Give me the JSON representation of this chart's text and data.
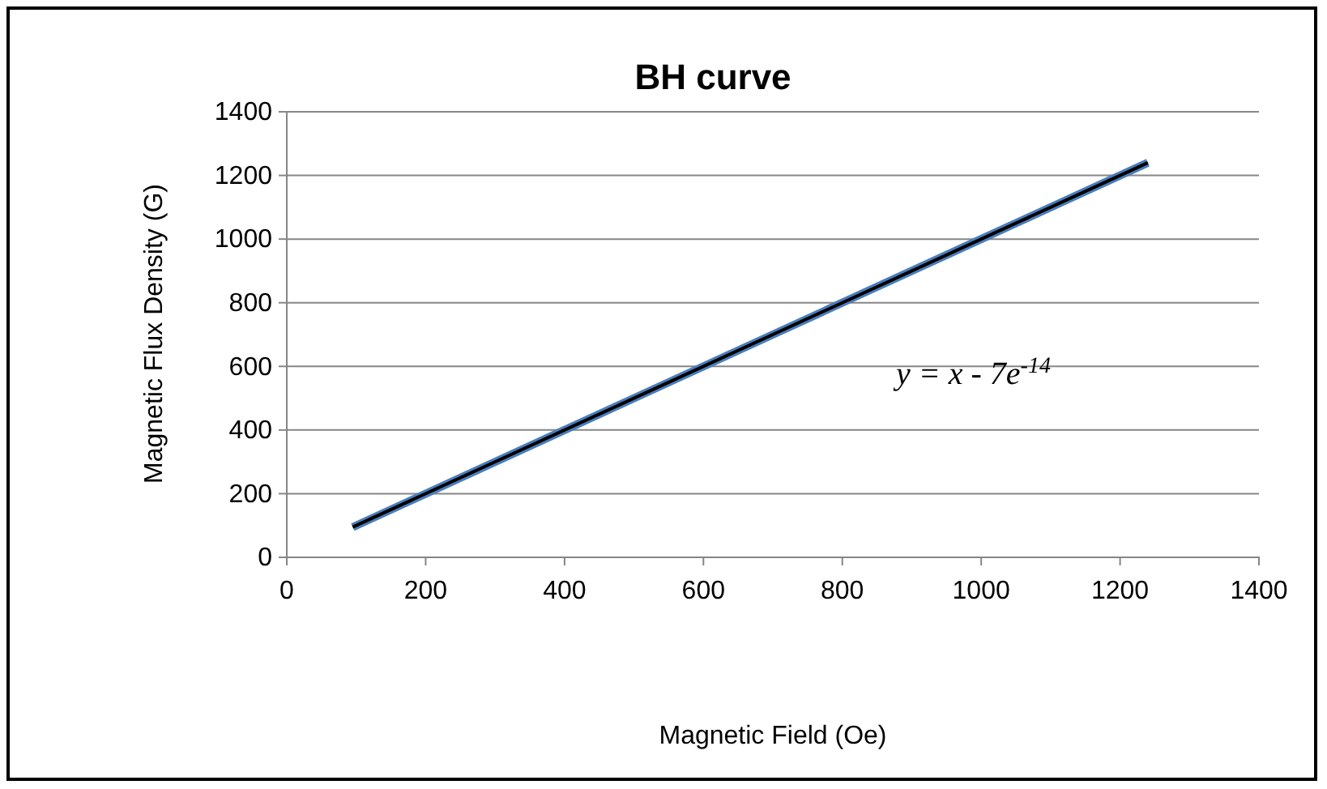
{
  "chart_data": {
    "type": "line",
    "title": "BH curve",
    "xlabel": "Magnetic Field (Oe)",
    "ylabel": "Magnetic Flux Density (G)",
    "annotations": [
      "y = x - 7e$^{-14}$"
    ],
    "series": [
      {
        "color": "#4a7ebb",
        "x": [
          95,
          400,
          700,
          1000,
          1240
        ],
        "values": [
          95,
          400,
          700,
          1000,
          1240
        ]
      },
      {
        "color": "#000000",
        "x": [
          95,
          1240
        ],
        "values": [
          95,
          1240
        ]
      }
    ],
    "xlim": [
      0,
      1400
    ],
    "xticks": [
      0,
      200,
      400,
      600,
      800,
      1000,
      1200,
      1400
    ],
    "ylim": [
      0,
      1400
    ],
    "yticks": [
      0,
      200,
      400,
      600,
      800,
      1000,
      1200,
      1400
    ],
    "grid": "y",
    "marker": "none",
    "line_style": "solid"
  }
}
